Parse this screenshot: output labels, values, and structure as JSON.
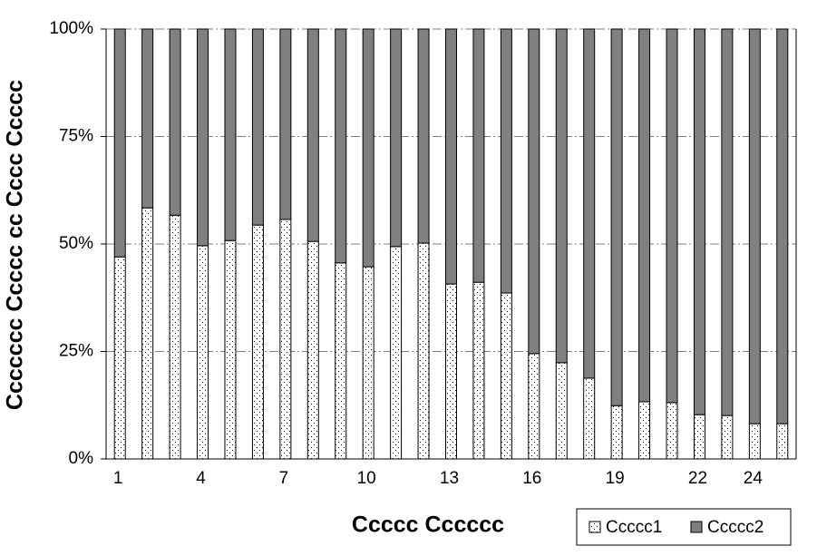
{
  "chart_data": {
    "type": "stacked_bar_100",
    "xlabel": "Ccccc Cccccc",
    "ylabel": "Ccccccc Ccccc cc Cccc Ccccc",
    "categories": [
      1,
      null,
      null,
      4,
      null,
      null,
      7,
      null,
      null,
      10,
      null,
      null,
      13,
      null,
      null,
      16,
      null,
      null,
      19,
      null,
      null,
      22,
      null,
      24,
      null
    ],
    "series": [
      {
        "name": "Ccccc1",
        "color": "#ffffff",
        "hatch": "dots",
        "values": [
          47.0,
          58.4,
          56.7,
          49.6,
          50.8,
          54.4,
          55.7,
          50.6,
          45.6,
          44.7,
          49.4,
          50.2,
          40.7,
          41.1,
          38.6,
          24.5,
          22.4,
          18.8,
          12.4,
          13.3,
          13.1,
          10.3,
          10.1,
          8.2,
          8.2
        ]
      },
      {
        "name": "Ccccc2",
        "color": "#808080",
        "values": [
          53.0,
          41.6,
          43.3,
          50.4,
          49.2,
          45.6,
          44.3,
          49.4,
          54.4,
          55.3,
          50.6,
          49.8,
          59.3,
          58.9,
          61.4,
          75.5,
          77.6,
          81.2,
          87.6,
          86.7,
          86.9,
          89.7,
          89.9,
          91.8,
          91.8
        ]
      }
    ],
    "ylim": [
      0,
      100
    ],
    "yticks": [
      {
        "value": 0,
        "label": "0%"
      },
      {
        "value": 25,
        "label": "25%"
      },
      {
        "value": 50,
        "label": "50%"
      },
      {
        "value": 75,
        "label": "75%"
      },
      {
        "value": 100,
        "label": "100%"
      }
    ],
    "grid": true,
    "legend": "bottom-right"
  }
}
